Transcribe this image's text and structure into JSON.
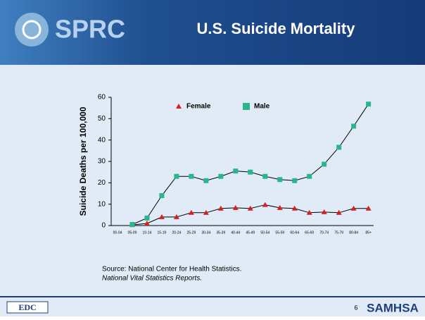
{
  "header": {
    "logo_text": "SPRC",
    "title": "U.S. Suicide Mortality"
  },
  "chart_data": {
    "type": "line",
    "y_label": "Suicide Deaths per 100,000",
    "categories": [
      "00-04",
      "05-09",
      "10-14",
      "15-19",
      "20-24",
      "25-29",
      "30-34",
      "35-39",
      "40-44",
      "45-49",
      "50-54",
      "55-59",
      "60-64",
      "65-69",
      "70-74",
      "75-79",
      "80-84",
      "85+"
    ],
    "series": [
      {
        "name": "Female",
        "color": "#d42020",
        "marker": "triangle",
        "values": [
          null,
          0.3,
          1,
          4,
          4,
          6,
          6,
          8,
          8.3,
          8,
          9.7,
          8.3,
          8,
          6,
          6.3,
          6,
          8,
          8
        ]
      },
      {
        "name": "Male",
        "color": "#2bb58c",
        "marker": "square",
        "values": [
          null,
          0.5,
          3.5,
          14,
          23,
          23,
          21,
          23,
          25.5,
          25,
          23,
          21.5,
          21,
          23,
          28.7,
          36.6,
          46.5,
          56.8
        ]
      }
    ],
    "ylim": [
      0,
      60
    ],
    "yticks": [
      0,
      10,
      20,
      30,
      40,
      50,
      60
    ],
    "grid": false,
    "legend": "top"
  },
  "source": {
    "line1": "Source: National Center for Health Statistics.",
    "line2": "National Vital Statistics Reports."
  },
  "footer": {
    "left_logo": "EDC",
    "page": "6",
    "right_logo": "SAMHSA"
  }
}
